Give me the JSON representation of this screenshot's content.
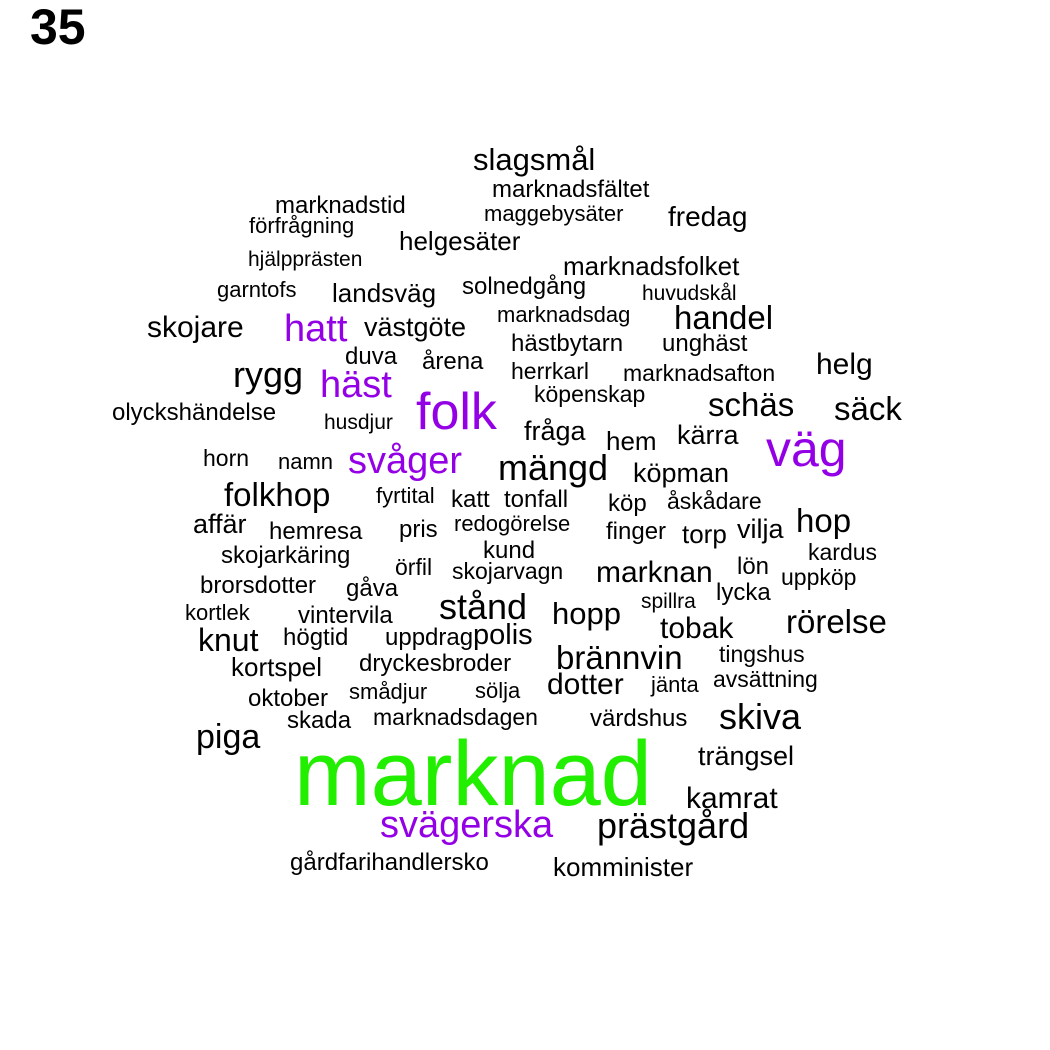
{
  "page_number": "35",
  "colors": {
    "top": "#22ee00",
    "secondary": "#9400e6",
    "default": "#000000"
  },
  "words": [
    "marknad",
    "folk",
    "väg",
    "svägerska",
    "svåger",
    "häst",
    "hatt",
    "prästgård",
    "mängd",
    "slagsmål",
    "marknadsfältet",
    "marknadstid",
    "maggebysäter",
    "fredag",
    "förfrågning",
    "helgesäter",
    "hjälpprästen",
    "marknadsfolket",
    "garntofs",
    "landsväg",
    "solnedgång",
    "huvudskål",
    "skojare",
    "västgöte",
    "marknadsdag",
    "handel",
    "hästbytarn",
    "unghäst",
    "duva",
    "årena",
    "rygg",
    "herrkarl",
    "marknadsafton",
    "helg",
    "köpenskap",
    "olyckshändelse",
    "husdjur",
    "schäs",
    "säck",
    "fråga",
    "hem",
    "kärra",
    "horn",
    "namn",
    "köpman",
    "folkhop",
    "fyrtital",
    "katt",
    "tonfall",
    "köp",
    "åskådare",
    "affär",
    "redogörelse",
    "hop",
    "hemresa",
    "pris",
    "finger",
    "torp",
    "vilja",
    "kund",
    "skojarkäring",
    "kardus",
    "örfil",
    "skojarvagn",
    "marknan",
    "lön",
    "brorsdotter",
    "gåva",
    "uppköp",
    "lycka",
    "stånd",
    "spillra",
    "kortlek",
    "vintervila",
    "hopp",
    "tobak",
    "rörelse",
    "knut",
    "högtid",
    "uppdrag",
    "polis",
    "tingshus",
    "brännvin",
    "dryckesbroder",
    "kortspel",
    "jänta",
    "avsättning",
    "dotter",
    "oktober",
    "smådjur",
    "sölja",
    "skada",
    "marknadsdagen",
    "värdshus",
    "skiva",
    "piga",
    "trängsel",
    "kamrat",
    "gårdfarihandlersko",
    "komminister"
  ]
}
